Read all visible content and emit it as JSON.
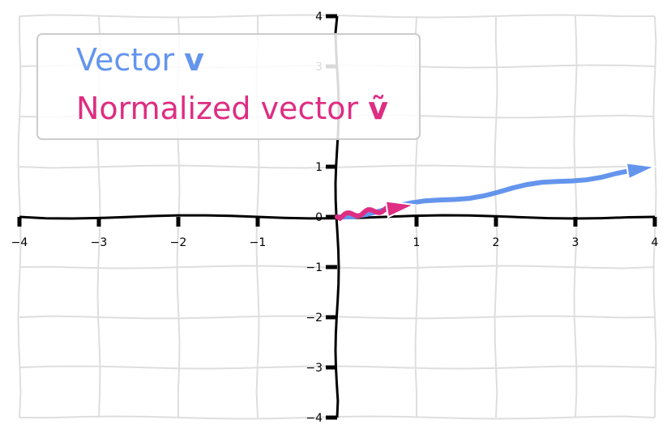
{
  "chart_data": {
    "type": "line",
    "title": "",
    "xlabel": "",
    "ylabel": "",
    "xlim": [
      -4,
      4
    ],
    "ylim": [
      -4,
      4
    ],
    "grid": true,
    "style": "hand-drawn (xkcd-like) axes through the origin",
    "x_ticks": [
      "−4",
      "−3",
      "−2",
      "−1",
      "1",
      "2",
      "3",
      "4"
    ],
    "y_ticks": [
      "4",
      "3",
      "1",
      "0",
      "−1",
      "−2",
      "−3",
      "−4"
    ],
    "legend": {
      "position": "top-left",
      "entries": [
        {
          "prefix": "Vector ",
          "symbol": "v",
          "color": "#6495ED"
        },
        {
          "prefix": "Normalized vector ",
          "symbol": "ṽ",
          "color": "#DE2D82"
        }
      ]
    },
    "series": [
      {
        "name": "Vector v",
        "color": "#6495ED",
        "x": [
          0,
          4
        ],
        "y": [
          0,
          1
        ]
      },
      {
        "name": "Normalized vector ṽ",
        "color": "#DE2D82",
        "x": [
          0,
          0.97
        ],
        "y": [
          0,
          0.24
        ]
      }
    ]
  }
}
